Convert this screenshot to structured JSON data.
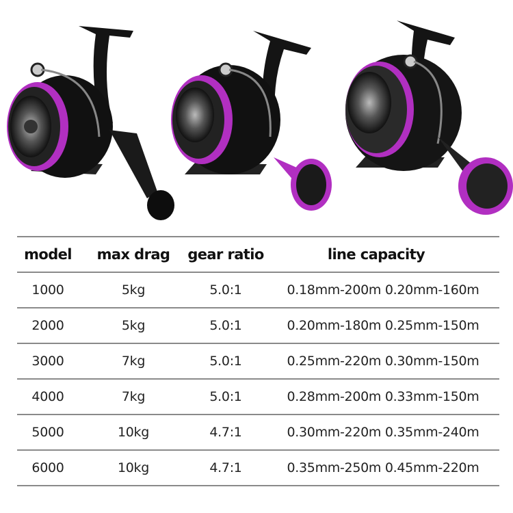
{
  "colors": {
    "accent": "#b12fc1",
    "reel_body": "#111111",
    "rule": "#8a8a8a"
  },
  "images": [
    "spinning-reel-1",
    "spinning-reel-2",
    "spinning-reel-3"
  ],
  "table": {
    "headers": [
      "model",
      "max drag",
      "gear ratio",
      "line capacity"
    ],
    "rows": [
      [
        "1000",
        "5kg",
        "5.0:1",
        "0.18mm-200m 0.20mm-160m"
      ],
      [
        "2000",
        "5kg",
        "5.0:1",
        "0.20mm-180m 0.25mm-150m"
      ],
      [
        "3000",
        "7kg",
        "5.0:1",
        "0.25mm-220m 0.30mm-150m"
      ],
      [
        "4000",
        "7kg",
        "5.0:1",
        "0.28mm-200m 0.33mm-150m"
      ],
      [
        "5000",
        "10kg",
        "4.7:1",
        "0.30mm-220m 0.35mm-240m"
      ],
      [
        "6000",
        "10kg",
        "4.7:1",
        "0.35mm-250m 0.45mm-220m"
      ]
    ]
  }
}
